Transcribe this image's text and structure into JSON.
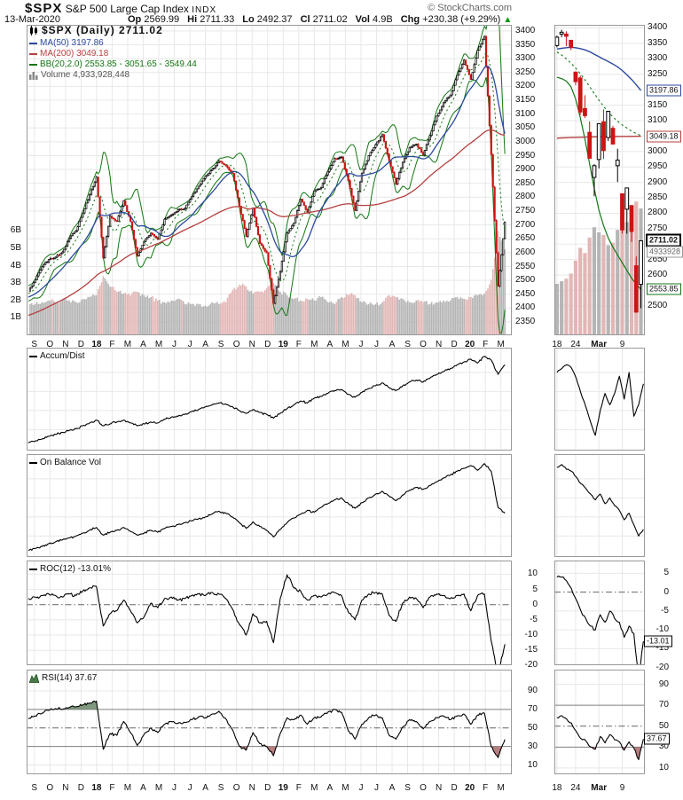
{
  "header": {
    "symbol": "$SPX",
    "name": "S&P 500 Large Cap Index",
    "exchange": "INDX",
    "copyright": "© StockCharts.com",
    "date": "13-Mar-2020",
    "quote": {
      "op_label": "Op",
      "op": "2569.99",
      "hi_label": "Hi",
      "hi": "2711.33",
      "lo_label": "Lo",
      "lo": "2492.37",
      "cl_label": "Cl",
      "cl": "2711.02",
      "vol_label": "Vol",
      "vol": "4.9B",
      "chg_label": "Chg",
      "chg": "+230.38 (+9.29%)",
      "arrow": "▲"
    }
  },
  "legend": {
    "spx": "$SPX (Daily) 2711.02",
    "ma50": "MA(50) 3197.86",
    "ma200": "MA(200) 3049.18",
    "bb": "BB(20,2.0) 2553.85 - 3051.65 - 3549.44",
    "volume": "Volume 4,933,928,448"
  },
  "panels": {
    "ad": {
      "label": "Accum/Dist"
    },
    "obv": {
      "label": "On Balance Vol"
    },
    "roc": {
      "label": "ROC(12) -13.01%"
    },
    "rsi": {
      "label": "RSI(14) 37.67"
    }
  },
  "callouts": {
    "ma50": "3197.86",
    "ma200": "3049.18",
    "close": "2711.02",
    "volume": "4933928",
    "bb_lower": "2553.85",
    "roc": "-13.01",
    "rsi": "37.67"
  },
  "axes": {
    "months": [
      "S",
      "O",
      "N",
      "D",
      "18",
      "F",
      "M",
      "A",
      "M",
      "J",
      "J",
      "A",
      "S",
      "O",
      "N",
      "D",
      "19",
      "F",
      "M",
      "A",
      "M",
      "J",
      "J",
      "A",
      "S",
      "O",
      "N",
      "D",
      "20",
      "F",
      "M"
    ],
    "bold_months": [
      4,
      16,
      28
    ],
    "mini_months": [
      "18",
      "24",
      "Mar",
      "9"
    ],
    "mini_bold": [
      2
    ],
    "mini_month_idx": [
      0,
      4,
      9,
      14
    ],
    "price_ticks": [
      3400,
      3350,
      3300,
      3250,
      3200,
      3150,
      3100,
      3050,
      3000,
      2950,
      2900,
      2850,
      2800,
      2750,
      2700,
      2650,
      2600,
      2550,
      2500,
      2450,
      2400,
      2350
    ],
    "mini_price_ticks": [
      3400,
      3350,
      3300,
      3250,
      3150,
      3100,
      3000,
      2950,
      2900,
      2850,
      2800,
      2750,
      2650,
      2600,
      2500
    ],
    "volume_ticks": [
      "6B",
      "5B",
      "4B",
      "3B",
      "2B",
      "1B"
    ],
    "roc_ticks": [
      10,
      5,
      0,
      -5,
      -10,
      -15,
      -20
    ],
    "mini_roc_ticks": [
      5,
      0,
      -5,
      -10,
      -15,
      -20
    ],
    "rsi_ticks": [
      90,
      70,
      50,
      30,
      10
    ]
  },
  "colors": {
    "candle_up": "#000000",
    "candle_down": "#cc1414",
    "ma50": "#2c4a9e",
    "ma200": "#b54040",
    "bb": "#127712",
    "vol_up": "#b5b5b5",
    "vol_down": "#e3b6b6",
    "grid": "#e8e8e8",
    "border": "#999999",
    "rsi_fill_over": "#5f805f",
    "rsi_fill_under": "#a55f5f",
    "arrow_up": "#009900"
  },
  "chart_data": {
    "type": "candlestick",
    "title": "$SPX S&P 500 Large Cap Index daily chart with MA(50), MA(200), BB(20,2.0), Volume, Accum/Dist, OBV, ROC(12), RSI(14)",
    "x_range": "Sep-2017 to 13-Mar-2020 (weekly closes, left panel) and 18-Feb-2020 to 13-Mar-2020 (daily, right panel)",
    "price_axis_range": [
      2302,
      3422
    ],
    "mini_price_axis_range": [
      2405,
      3410
    ],
    "main": {
      "closes": [
        2461,
        2502,
        2549,
        2575,
        2584,
        2602,
        2652,
        2680,
        2743,
        2810,
        2873,
        2581,
        2732,
        2713,
        2787,
        2712,
        2588,
        2641,
        2670,
        2648,
        2721,
        2735,
        2755,
        2760,
        2802,
        2840,
        2875,
        2901,
        2930,
        2914,
        2886,
        2768,
        2659,
        2760,
        2633,
        2600,
        2417,
        2532,
        2671,
        2707,
        2793,
        2743,
        2823,
        2834,
        2893,
        2940,
        2945,
        2860,
        2752,
        2887,
        2950,
        2990,
        3026,
        2932,
        2847,
        2926,
        2979,
        2992,
        2952,
        3023,
        3093,
        3141,
        3169,
        3240,
        3295,
        3225,
        3330,
        3380,
        2954,
        2480,
        2711
      ],
      "volumes_B": [
        1.9,
        1.8,
        1.9,
        2.0,
        1.9,
        2.0,
        2.0,
        1.9,
        2.1,
        2.2,
        2.3,
        3.4,
        2.8,
        2.5,
        2.4,
        2.3,
        2.5,
        2.3,
        2.2,
        2.0,
        1.9,
        2.0,
        2.1,
        1.8,
        1.8,
        1.8,
        1.7,
        1.9,
        1.8,
        1.9,
        2.6,
        2.9,
        2.8,
        2.4,
        2.5,
        2.7,
        3.0,
        2.5,
        2.3,
        2.1,
        2.0,
        2.1,
        2.0,
        2.2,
        1.9,
        1.8,
        2.2,
        2.3,
        2.3,
        1.9,
        1.8,
        1.8,
        1.9,
        2.3,
        2.2,
        2.1,
        1.9,
        2.0,
        1.9,
        1.8,
        1.9,
        2.0,
        2.0,
        2.2,
        2.1,
        2.2,
        2.3,
        2.4,
        3.2,
        6.0,
        4.93
      ],
      "accum_dist_pct": [
        6,
        8,
        10,
        13,
        15,
        17,
        19,
        21,
        24,
        27,
        30,
        24,
        26,
        28,
        30,
        27,
        24,
        26,
        28,
        27,
        31,
        33,
        34,
        36,
        39,
        41,
        44,
        46,
        48,
        47,
        44,
        40,
        37,
        41,
        38,
        36,
        32,
        37,
        42,
        46,
        50,
        48,
        53,
        55,
        58,
        61,
        62,
        57,
        54,
        59,
        63,
        66,
        69,
        64,
        61,
        66,
        70,
        72,
        70,
        74,
        78,
        81,
        84,
        88,
        91,
        94,
        90,
        97,
        93,
        78,
        88
      ],
      "obv_pct": [
        5,
        7,
        9,
        12,
        14,
        16,
        18,
        20,
        23,
        26,
        29,
        21,
        24,
        26,
        29,
        25,
        21,
        23,
        26,
        24,
        28,
        30,
        32,
        34,
        36,
        38,
        40,
        43,
        46,
        44,
        40,
        34,
        28,
        35,
        30,
        26,
        19,
        27,
        34,
        39,
        43,
        47,
        45,
        50,
        54,
        58,
        60,
        54,
        49,
        55,
        60,
        64,
        67,
        62,
        57,
        63,
        68,
        71,
        69,
        73,
        77,
        81,
        84,
        88,
        91,
        94,
        89,
        96,
        88,
        50,
        44
      ],
      "roc12_pct": [
        2,
        2.5,
        3,
        3.5,
        3,
        2.5,
        3.5,
        3,
        4.5,
        5.5,
        6,
        -7,
        -3,
        -2,
        1.5,
        -2,
        -6,
        -4,
        0.5,
        -1,
        2,
        2.5,
        1.5,
        2,
        3,
        3.5,
        3,
        4,
        3.5,
        2,
        -1.5,
        -6.5,
        -10,
        -3,
        -6,
        -5.5,
        -12.5,
        2,
        9.8,
        5.5,
        4.5,
        1.5,
        3,
        2.5,
        3.5,
        4,
        3,
        -2.5,
        -5,
        1.5,
        3.5,
        4,
        3.5,
        -3.5,
        -5.5,
        0.5,
        2.5,
        2,
        -1,
        2.5,
        3.5,
        3,
        2,
        3,
        3.5,
        -2,
        3,
        3.5,
        -12,
        -23,
        -13.01
      ],
      "rsi14": [
        60,
        63,
        66,
        69,
        71,
        70,
        72,
        73,
        75,
        77,
        79,
        27,
        44,
        42,
        57,
        45,
        31,
        43,
        50,
        45,
        54,
        57,
        55,
        56,
        59,
        62,
        61,
        65,
        68,
        60,
        48,
        30,
        26,
        45,
        33,
        30,
        20,
        44,
        61,
        59,
        64,
        54,
        61,
        62,
        67,
        70,
        67,
        47,
        38,
        54,
        61,
        64,
        61,
        42,
        38,
        51,
        59,
        57,
        49,
        57,
        61,
        63,
        59,
        63,
        65,
        54,
        64,
        66,
        30,
        18,
        37.67
      ]
    },
    "mini": {
      "ohlc": [
        [
          3343,
          3375,
          3337,
          3370
        ],
        [
          3380,
          3394,
          3370,
          3386
        ],
        [
          3380,
          3389,
          3341,
          3373
        ],
        [
          3360,
          3360,
          3328,
          3337
        ],
        [
          3257,
          3259,
          3214,
          3226
        ],
        [
          3238,
          3246,
          3118,
          3128
        ],
        [
          3139,
          3182,
          3108,
          3116
        ],
        [
          3062,
          3097,
          2977,
          2978
        ],
        [
          2916,
          2959,
          2855,
          2954
        ],
        [
          2974,
          3090,
          2945,
          3090
        ],
        [
          3096,
          3136,
          2976,
          3003
        ],
        [
          3045,
          3130,
          3034,
          3130
        ],
        [
          3075,
          3083,
          3024,
          3024
        ],
        [
          2954,
          3009,
          2901,
          2972
        ],
        [
          2863,
          2863,
          2734,
          2746
        ],
        [
          2813,
          2882,
          2734,
          2882
        ],
        [
          2825,
          2825,
          2707,
          2741
        ],
        [
          2630,
          2660,
          2478,
          2480
        ],
        [
          2569.99,
          2711.33,
          2492.37,
          2711.02
        ]
      ],
      "volumes_B": [
        2.0,
        2.1,
        2.2,
        2.4,
        2.9,
        3.4,
        3.2,
        3.8,
        4.2,
        4.0,
        3.9,
        3.5,
        3.6,
        4.1,
        4.6,
        4.4,
        4.5,
        5.2,
        4.93
      ],
      "ma50": [
        3332,
        3334,
        3336,
        3337,
        3336,
        3333,
        3329,
        3323,
        3315,
        3307,
        3299,
        3291,
        3283,
        3274,
        3262,
        3248,
        3233,
        3216,
        3197.86
      ],
      "ma200": [
        3043,
        3044,
        3044.5,
        3045,
        3045.5,
        3046,
        3046.5,
        3047,
        3047.3,
        3047.6,
        3047.9,
        3048.1,
        3048.3,
        3048.5,
        3048.7,
        3048.8,
        3048.9,
        3049.0,
        3049.18
      ],
      "bb_mid": [
        3322,
        3312,
        3300,
        3286,
        3270,
        3252,
        3232,
        3210,
        3188,
        3166,
        3146,
        3128,
        3112,
        3098,
        3086,
        3076,
        3066,
        3058,
        3051.65
      ],
      "bb_lower": [
        3240,
        3236,
        3228,
        3210,
        3170,
        3110,
        3040,
        2960,
        2880,
        2810,
        2760,
        2720,
        2690,
        2665,
        2640,
        2615,
        2590,
        2570,
        2553.85
      ],
      "accum_dist_pct": [
        80,
        84,
        88,
        85,
        74,
        58,
        44,
        28,
        14,
        40,
        58,
        46,
        58,
        76,
        52,
        80,
        34,
        46,
        68
      ],
      "obv_pct": [
        92,
        95,
        90,
        88,
        82,
        75,
        70,
        64,
        58,
        64,
        54,
        60,
        52,
        47,
        37,
        44,
        32,
        20,
        27
      ],
      "roc12_pct": [
        4,
        4,
        3,
        1,
        -2,
        -5,
        -7,
        -9,
        -10,
        -6,
        -8,
        -5,
        -7,
        -8,
        -12,
        -9,
        -11,
        -23,
        -13.01
      ],
      "rsi14": [
        58,
        60,
        57,
        53,
        45,
        38,
        36,
        30,
        28,
        40,
        34,
        42,
        37,
        35,
        27,
        35,
        29,
        18,
        37.67
      ]
    }
  }
}
